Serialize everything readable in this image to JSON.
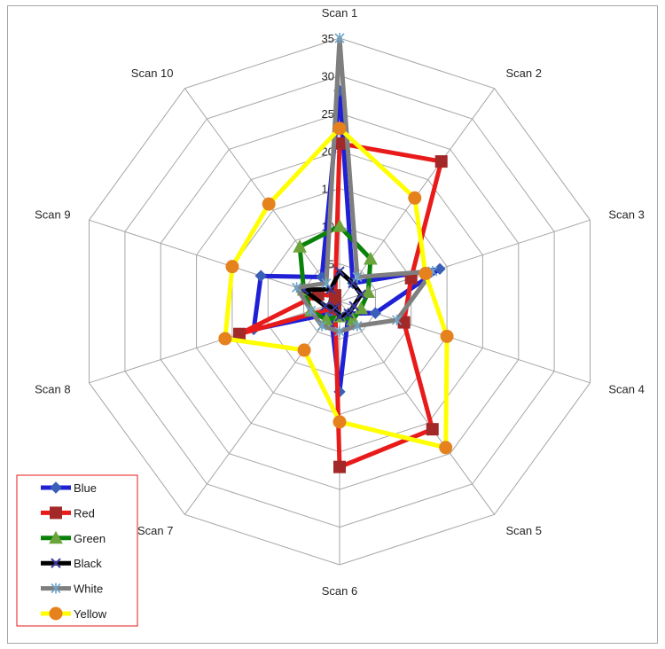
{
  "chart_data": {
    "type": "radar",
    "categories": [
      "Scan 1",
      "Scan 2",
      "Scan 3",
      "Scan 4",
      "Scan 5",
      "Scan 6",
      "Scan 7",
      "Scan 8",
      "Scan 9",
      "Scan 10"
    ],
    "rmin": 0,
    "rmax": 35,
    "ticks": [
      0,
      5,
      10,
      15,
      20,
      25,
      30,
      35
    ],
    "tick_labels": [
      "0",
      "5",
      "10",
      "15",
      "20",
      "25",
      "30",
      "35"
    ],
    "grid": true,
    "legend_position": "bottom-left",
    "series": [
      {
        "name": "Blue",
        "color": "#1f1fd6",
        "marker": "diamond",
        "values": [
          28,
          3,
          14,
          5,
          2,
          12,
          2,
          12,
          11,
          4
        ]
      },
      {
        "name": "Red",
        "color": "#e81a1a",
        "marker": "square",
        "values": [
          21,
          23,
          10,
          9,
          21,
          22,
          1,
          14,
          3,
          1
        ]
      },
      {
        "name": "Green",
        "color": "#0a820a",
        "marker": "triangle",
        "values": [
          10,
          7,
          4,
          3,
          3,
          2,
          3,
          4,
          5,
          9
        ]
      },
      {
        "name": "Black",
        "color": "#000000",
        "marker": "x",
        "values": [
          4,
          3,
          3,
          2,
          2,
          2,
          1,
          2,
          5,
          2
        ]
      },
      {
        "name": "White",
        "color": "#7f7f7f",
        "marker": "asterisk",
        "values": [
          35,
          4,
          13,
          8,
          4,
          4,
          4,
          4,
          6,
          3
        ]
      },
      {
        "name": "Yellow",
        "color": "#ffff00",
        "marker": "circle",
        "values": [
          23,
          17,
          12,
          15,
          24,
          16,
          8,
          16,
          15,
          16
        ]
      }
    ]
  },
  "colors": {
    "grid": "#a6a6a6",
    "marker_fill": {
      "Blue": "#3a5fb8",
      "Red": "#a32929",
      "Green": "#6aa43a",
      "Black": "#3a3aa0",
      "White": "#6fa5c8",
      "Yellow": "#e6821e"
    },
    "legend_border": "#e81a1a"
  }
}
